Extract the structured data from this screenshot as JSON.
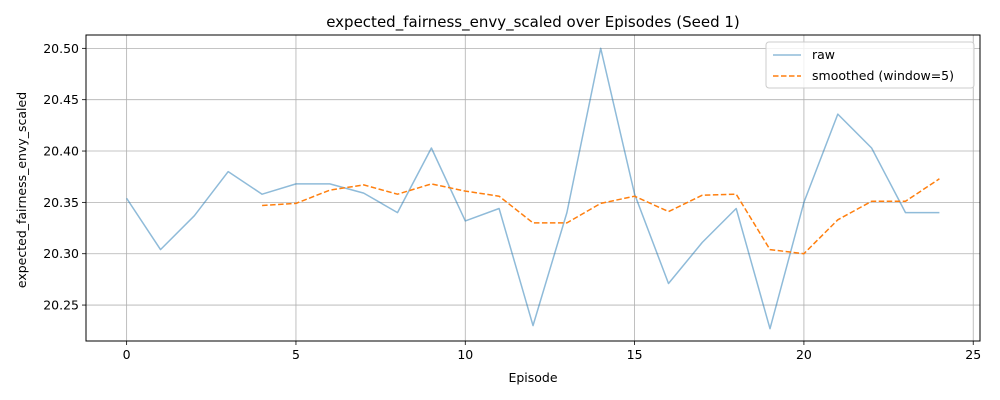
{
  "chart_data": {
    "type": "line",
    "title": "expected_fairness_envy_scaled over Episodes (Seed 1)",
    "xlabel": "Episode",
    "ylabel": "expected_fairness_envy_scaled",
    "xlim": [
      -1.2,
      25.2
    ],
    "ylim": [
      20.215,
      20.513
    ],
    "x_ticks": [
      0,
      5,
      10,
      15,
      20,
      25
    ],
    "y_ticks": [
      20.25,
      20.3,
      20.35,
      20.4,
      20.45,
      20.5
    ],
    "y_tick_labels": [
      "20.25",
      "20.30",
      "20.35",
      "20.40",
      "20.45",
      "20.50"
    ],
    "grid": true,
    "legend_position": "upper right",
    "series": [
      {
        "name": "raw",
        "color": "#1f77b4",
        "style": "solid",
        "alpha": 0.5,
        "x": [
          0,
          1,
          2,
          3,
          4,
          5,
          6,
          7,
          8,
          9,
          10,
          11,
          12,
          13,
          14,
          15,
          16,
          17,
          18,
          19,
          20,
          21,
          22,
          23,
          24
        ],
        "values": [
          20.354,
          20.304,
          20.337,
          20.38,
          20.358,
          20.368,
          20.368,
          20.359,
          20.34,
          20.403,
          20.332,
          20.344,
          20.23,
          20.34,
          20.5,
          20.358,
          20.271,
          20.311,
          20.344,
          20.227,
          20.35,
          20.436,
          20.403,
          20.34,
          20.34
        ]
      },
      {
        "name": "smoothed (window=5)",
        "color": "#ff7f0e",
        "style": "dashed",
        "x": [
          4,
          5,
          6,
          7,
          8,
          9,
          10,
          11,
          12,
          13,
          14,
          15,
          16,
          17,
          18,
          19,
          20,
          21,
          22,
          23,
          24
        ],
        "values": [
          20.347,
          20.349,
          20.362,
          20.367,
          20.358,
          20.368,
          20.361,
          20.356,
          20.33,
          20.33,
          20.349,
          20.356,
          20.341,
          20.357,
          20.358,
          20.304,
          20.3,
          20.333,
          20.351,
          20.351,
          20.373
        ]
      }
    ]
  }
}
